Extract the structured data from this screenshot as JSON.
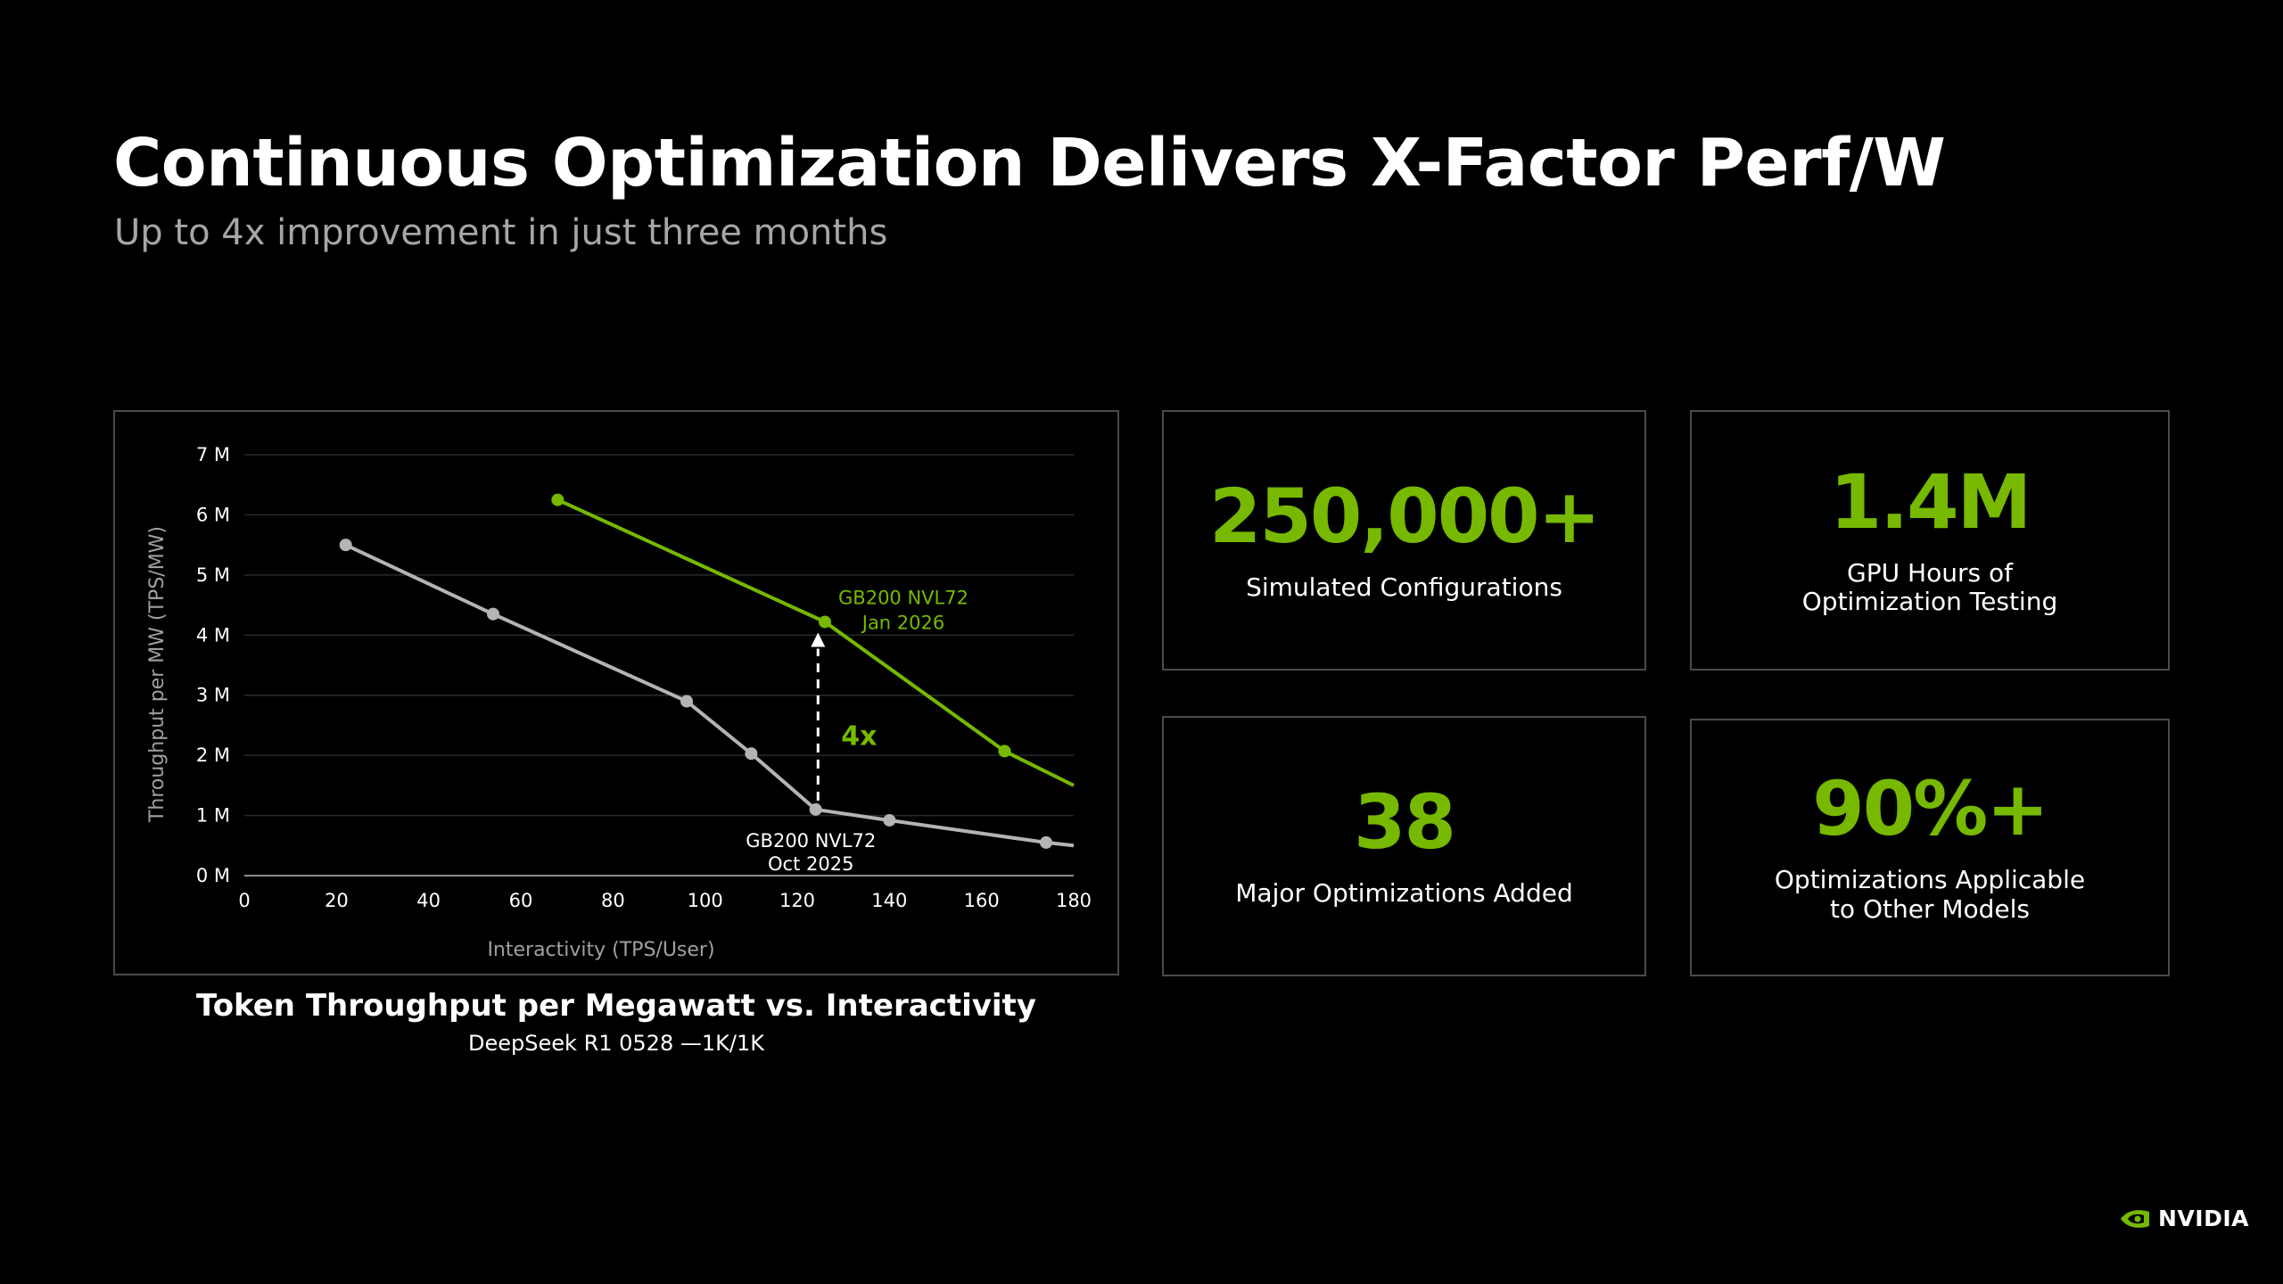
{
  "header": {
    "title": "Continuous Optimization Delivers X-Factor Perf/W",
    "subtitle": "Up to 4x improvement in just three months"
  },
  "chart_caption": {
    "title": "Token Throughput per Megawatt vs. Interactivity",
    "subtitle": "DeepSeek R1 0528 —1K/1K"
  },
  "chart_data": {
    "type": "line",
    "xlabel": "Interactivity (TPS/User)",
    "ylabel": "Throughput per MW (TPS/MW)",
    "xlim": [
      0,
      180
    ],
    "ylim": [
      0,
      7
    ],
    "xticks": [
      0,
      20,
      40,
      60,
      80,
      100,
      120,
      140,
      160,
      180
    ],
    "xtick_labels": [
      "0",
      "20",
      "40",
      "60",
      "80",
      "100",
      "120",
      "140",
      "160",
      "180"
    ],
    "yticks": [
      0,
      1,
      2,
      3,
      4,
      5,
      6,
      7
    ],
    "ytick_labels": [
      "0 M",
      "1 M",
      "2 M",
      "3 M",
      "4 M",
      "5 M",
      "6 M",
      "7 M"
    ],
    "grid": "horizontal",
    "series": [
      {
        "name": "GB200 NVL72 Oct 2025",
        "color": "#b4b4b4",
        "x": [
          22,
          54,
          96,
          110,
          124,
          140,
          174,
          180
        ],
        "y": [
          5.5,
          4.35,
          2.9,
          2.03,
          1.1,
          0.92,
          0.55,
          0.5
        ],
        "markers": [
          true,
          true,
          true,
          true,
          true,
          true,
          true,
          false
        ]
      },
      {
        "name": "GB200 NVL72 Jan 2026",
        "color": "#76b900",
        "x": [
          68,
          126,
          165,
          180
        ],
        "y": [
          6.25,
          4.22,
          2.07,
          1.5
        ],
        "markers": [
          true,
          true,
          true,
          false
        ]
      }
    ],
    "annotations": {
      "old_label": [
        "GB200 NVL72",
        "Oct 2025"
      ],
      "new_label": [
        "GB200 NVL72",
        "Jan 2026"
      ],
      "improvement": "4x",
      "arrow_x": 124.5,
      "arrow_from": 1.1,
      "arrow_to": 4.22
    }
  },
  "stats": [
    {
      "value": "250,000+",
      "label": "Simulated Configurations"
    },
    {
      "value": "1.4M",
      "label": "GPU Hours of\nOptimization Testing"
    },
    {
      "value": "38",
      "label": "Major Optimizations Added"
    },
    {
      "value": "90%+",
      "label": "Optimizations Applicable\nto Other Models"
    }
  ],
  "brand": {
    "logo_text": "NVIDIA",
    "accent": "#76b900",
    "logo_icon": "nvidia-eye-icon"
  }
}
